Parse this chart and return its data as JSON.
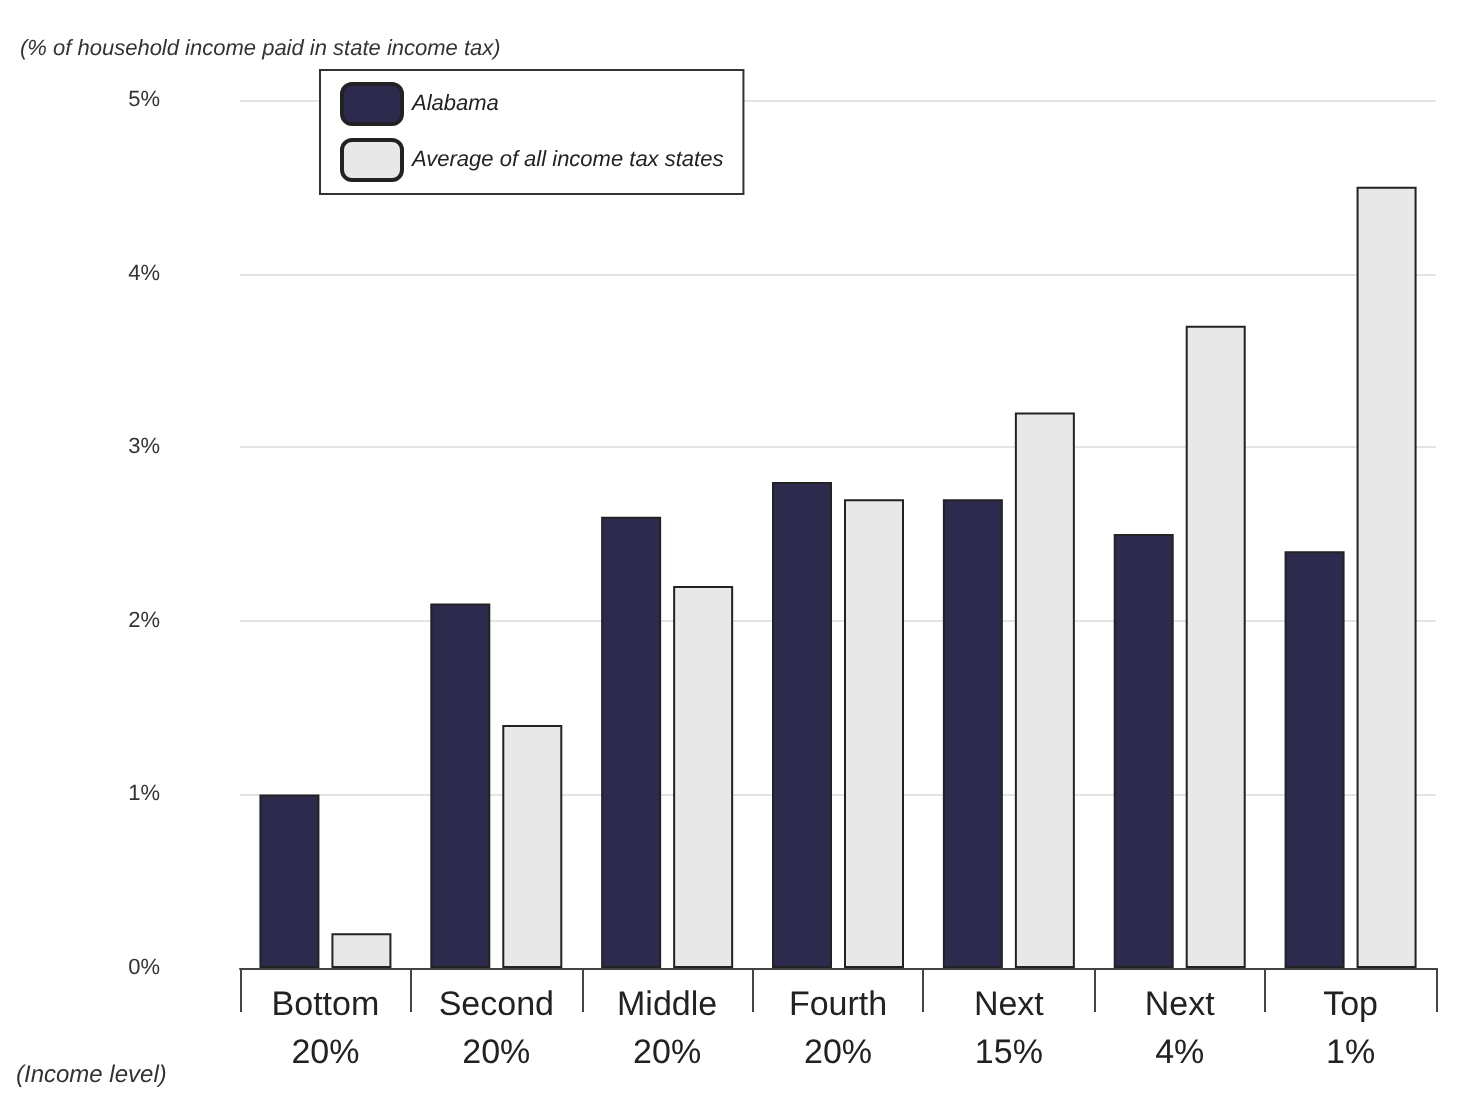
{
  "chart_data": {
    "type": "bar",
    "ylabel": "(% of household income paid in state income tax)",
    "categories": [
      "Bottom\n20%",
      "Second\n20%",
      "Middle\n20%",
      "Fourth\n20%",
      "Next\n15%",
      "Next\n4%",
      "Top\n1%"
    ],
    "series": [
      {
        "name": "Alabama",
        "color": "#2c2b4e",
        "values": [
          1.0,
          2.1,
          2.6,
          2.8,
          2.7,
          2.5,
          2.4
        ]
      },
      {
        "name": "Average of all income tax states",
        "color": "#e8e8e8",
        "values": [
          0.2,
          1.4,
          2.2,
          2.7,
          3.2,
          3.7,
          4.5
        ]
      }
    ],
    "ylim": [
      0,
      5
    ],
    "yticks": [
      {
        "value": 0,
        "label": "0%"
      },
      {
        "value": 1,
        "label": "1%"
      },
      {
        "value": 2,
        "label": "2%"
      },
      {
        "value": 3,
        "label": "3%"
      },
      {
        "value": 4,
        "label": "4%"
      },
      {
        "value": 5,
        "label": "5%"
      }
    ],
    "grid": "y",
    "legend": "top left",
    "annotations": [
      "(Income level)"
    ]
  }
}
